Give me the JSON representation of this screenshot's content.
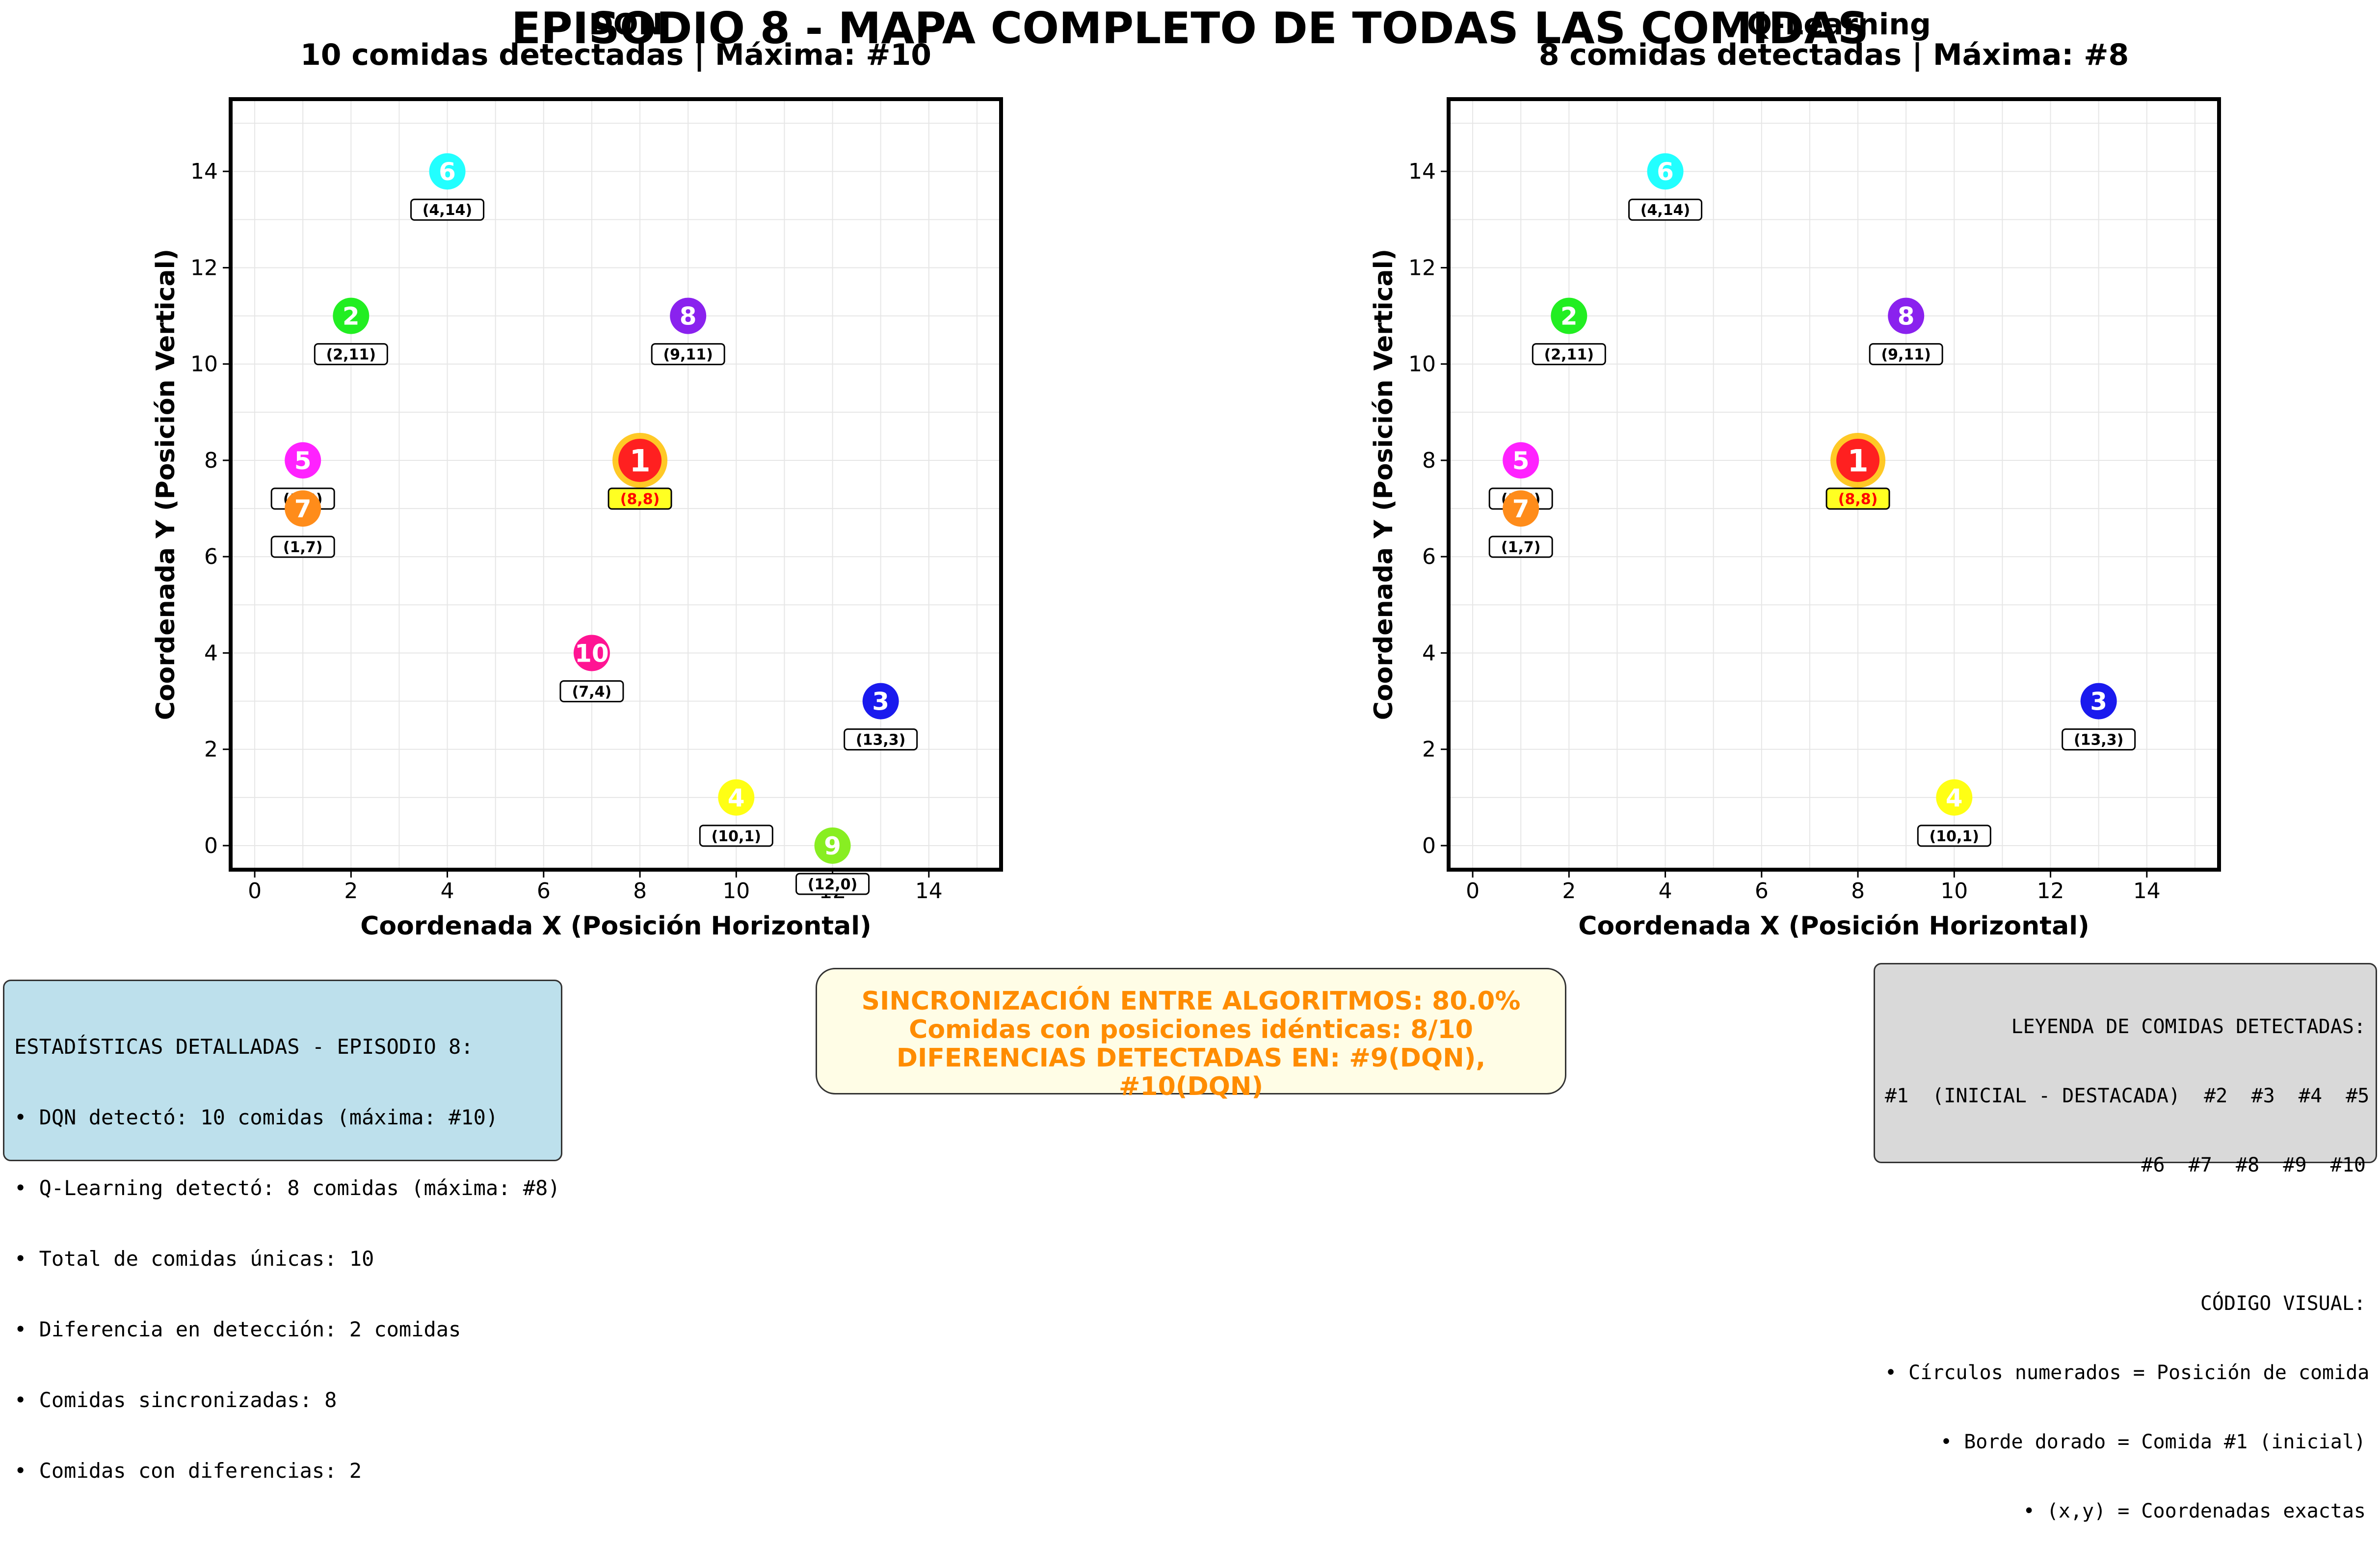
{
  "title": "EPISODIO 8 - MAPA COMPLETO DE TODAS LAS COMIDAS",
  "algo_labels": [
    "DQN",
    "Q-Learning"
  ],
  "chart_data": [
    {
      "type": "scatter",
      "title": "10 comidas detectadas | Máxima: #10",
      "xlabel": "Coordenada X (Posición Horizontal)",
      "ylabel": "Coordenada Y (Posición Vertical)",
      "xlim": [
        -0.5,
        15.5
      ],
      "ylim": [
        -0.5,
        15.5
      ],
      "xticks": [
        0,
        2,
        4,
        6,
        8,
        10,
        12,
        14
      ],
      "yticks": [
        0,
        2,
        4,
        6,
        8,
        10,
        12,
        14
      ],
      "grid": true,
      "points": [
        {
          "id": "1",
          "x": 8,
          "y": 8,
          "label": "(8,8)",
          "color": "#ff2020",
          "highlight": true
        },
        {
          "id": "2",
          "x": 2,
          "y": 11,
          "label": "(2,11)",
          "color": "#22ee22"
        },
        {
          "id": "3",
          "x": 13,
          "y": 3,
          "label": "(13,3)",
          "color": "#1a1aee"
        },
        {
          "id": "4",
          "x": 10,
          "y": 1,
          "label": "(10,1)",
          "color": "#ffff14"
        },
        {
          "id": "5",
          "x": 1,
          "y": 8,
          "label": "(1,8)",
          "color": "#ff22ff"
        },
        {
          "id": "6",
          "x": 4,
          "y": 14,
          "label": "(4,14)",
          "color": "#22ffff"
        },
        {
          "id": "7",
          "x": 1,
          "y": 7,
          "label": "(1,7)",
          "color": "#ff8c1a"
        },
        {
          "id": "8",
          "x": 9,
          "y": 11,
          "label": "(9,11)",
          "color": "#8a22ee"
        },
        {
          "id": "9",
          "x": 12,
          "y": 0,
          "label": "(12,0)",
          "color": "#88ee22"
        },
        {
          "id": "10",
          "x": 7,
          "y": 4,
          "label": "(7,4)",
          "color": "#ff1493"
        }
      ]
    },
    {
      "type": "scatter",
      "title": "8 comidas detectadas | Máxima: #8",
      "xlabel": "Coordenada X (Posición Horizontal)",
      "ylabel": "Coordenada Y (Posición Vertical)",
      "xlim": [
        -0.5,
        15.5
      ],
      "ylim": [
        -0.5,
        15.5
      ],
      "xticks": [
        0,
        2,
        4,
        6,
        8,
        10,
        12,
        14
      ],
      "yticks": [
        0,
        2,
        4,
        6,
        8,
        10,
        12,
        14
      ],
      "grid": true,
      "points": [
        {
          "id": "1",
          "x": 8,
          "y": 8,
          "label": "(8,8)",
          "color": "#ff2020",
          "highlight": true
        },
        {
          "id": "2",
          "x": 2,
          "y": 11,
          "label": "(2,11)",
          "color": "#22ee22"
        },
        {
          "id": "3",
          "x": 13,
          "y": 3,
          "label": "(13,3)",
          "color": "#1a1aee"
        },
        {
          "id": "4",
          "x": 10,
          "y": 1,
          "label": "(10,1)",
          "color": "#ffff14"
        },
        {
          "id": "5",
          "x": 1,
          "y": 8,
          "label": "(1,8)",
          "color": "#ff22ff"
        },
        {
          "id": "6",
          "x": 4,
          "y": 14,
          "label": "(4,14)",
          "color": "#22ffff"
        },
        {
          "id": "7",
          "x": 1,
          "y": 7,
          "label": "(1,7)",
          "color": "#ff8c1a"
        },
        {
          "id": "8",
          "x": 9,
          "y": 11,
          "label": "(9,11)",
          "color": "#8a22ee"
        }
      ]
    }
  ],
  "stats": {
    "lines": [
      "ESTADÍSTICAS DETALLADAS - EPISODIO 8:",
      "• DQN detectó: 10 comidas (máxima: #10)",
      "• Q-Learning detectó: 8 comidas (máxima: #8)",
      "• Total de comidas únicas: 10",
      "• Diferencia en detección: 2 comidas",
      "• Comidas sincronizadas: 8",
      "• Comidas con diferencias: 2"
    ]
  },
  "sync": {
    "lines": [
      "SINCRONIZACIÓN ENTRE ALGORITMOS: 80.0%",
      "Comidas con posiciones idénticas: 8/10",
      "DIFERENCIAS DETECTADAS EN: #9(DQN), #10(DQN)"
    ]
  },
  "legend": {
    "lines": [
      "LEYENDA DE COMIDAS DETECTADAS:",
      "#1  (INICIAL - DESTACADA)  #2  #3  #4  #5",
      "#6  #7  #8  #9  #10",
      "",
      "CÓDIGO VISUAL:",
      "• Círculos numerados = Posición de comida",
      "• Borde dorado = Comida #1 (inicial)",
      "• (x,y) = Coordenadas exactas"
    ]
  }
}
